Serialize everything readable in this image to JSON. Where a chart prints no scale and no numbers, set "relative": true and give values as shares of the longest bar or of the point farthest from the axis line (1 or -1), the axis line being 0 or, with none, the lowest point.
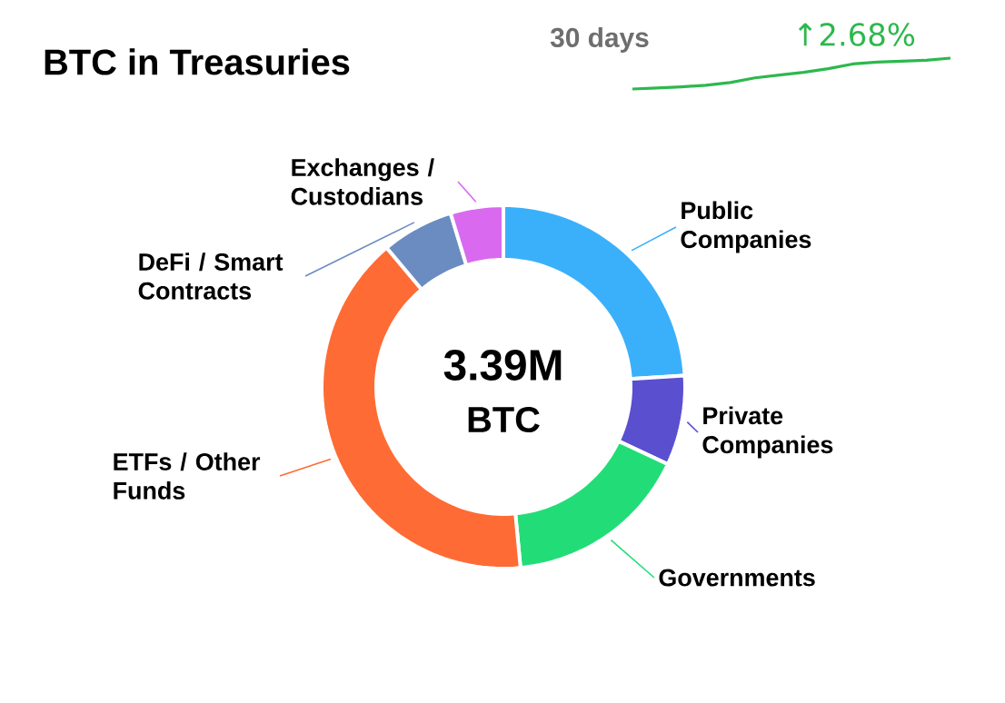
{
  "chart_data": [
    {
      "type": "donut",
      "title": "BTC in Treasuries",
      "annotations": [
        "3.39M",
        "BTC"
      ],
      "legend": false,
      "categories": [
        "Public Companies",
        "Private Companies",
        "Governments",
        "ETFs / Other Funds",
        "DeFi / Smart Contracts",
        "Exchanges / Custodians"
      ],
      "values": [
        24,
        8,
        16.5,
        40.4,
        6.4,
        4.7
      ],
      "colors": [
        "#3bb0fa",
        "#5a4fcf",
        "#22dd77",
        "#ff6b35",
        "#6b8cc0",
        "#d96af0"
      ]
    },
    {
      "type": "line",
      "relative": true,
      "annotations": [
        "30 days",
        "↑2.68%"
      ],
      "categories": [
        null,
        null,
        null,
        null,
        null,
        null,
        null,
        null,
        null,
        null,
        null,
        null,
        null,
        null
      ],
      "series": [
        {
          "color": "#2db84d",
          "values": [
            0,
            0.03,
            0.07,
            0.12,
            0.21,
            0.36,
            0.45,
            0.54,
            0.66,
            0.81,
            0.87,
            0.9,
            0.93,
            1
          ]
        }
      ]
    }
  ]
}
